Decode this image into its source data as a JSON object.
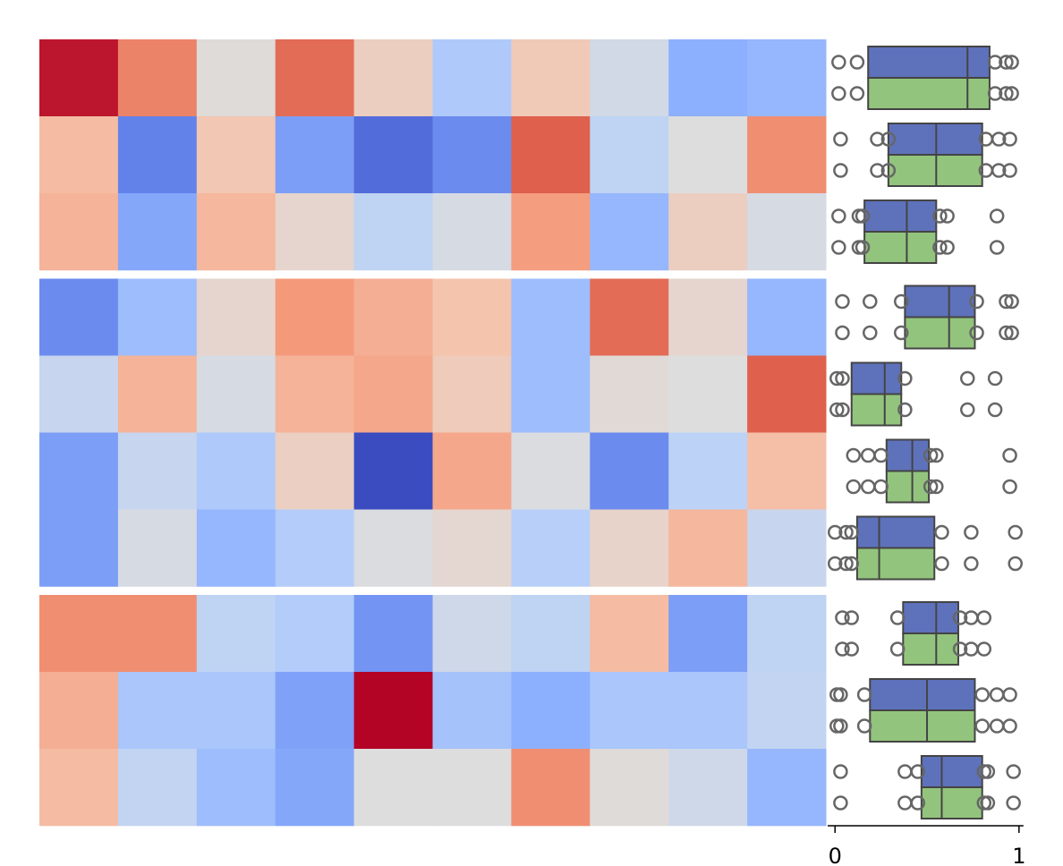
{
  "chart_data": {
    "type": "heatmap",
    "colormap": "coolwarm",
    "vlim": [
      -1,
      1
    ],
    "row_groups": [
      3,
      4,
      3
    ],
    "values": [
      [
        0.95,
        0.6,
        0.02,
        0.7,
        0.15,
        -0.3,
        0.2,
        -0.08,
        -0.5,
        -0.45
      ],
      [
        0.3,
        -0.75,
        0.22,
        -0.6,
        -0.85,
        -0.7,
        0.75,
        -0.2,
        0.0,
        0.55
      ],
      [
        0.35,
        -0.55,
        0.33,
        0.08,
        -0.2,
        -0.05,
        0.48,
        -0.45,
        0.15,
        -0.05
      ],
      [
        -0.7,
        -0.4,
        0.08,
        0.5,
        0.38,
        0.25,
        -0.4,
        0.7,
        0.08,
        -0.45
      ],
      [
        -0.15,
        0.35,
        -0.05,
        0.35,
        0.42,
        0.18,
        -0.4,
        0.04,
        0.0,
        0.75
      ],
      [
        -0.6,
        -0.15,
        -0.3,
        0.14,
        -1.0,
        0.42,
        -0.02,
        -0.7,
        -0.22,
        0.28
      ],
      [
        -0.6,
        -0.05,
        -0.45,
        -0.28,
        -0.02,
        0.07,
        -0.25,
        0.1,
        0.33,
        -0.15
      ],
      [
        0.55,
        0.55,
        -0.2,
        -0.28,
        -0.65,
        -0.1,
        -0.2,
        0.3,
        -0.6,
        -0.2
      ],
      [
        0.38,
        -0.33,
        -0.33,
        -0.58,
        1.0,
        -0.36,
        -0.5,
        -0.33,
        -0.33,
        -0.18
      ],
      [
        0.3,
        -0.18,
        -0.4,
        -0.55,
        0.0,
        0.0,
        0.55,
        0.02,
        -0.1,
        -0.45
      ]
    ],
    "box_annotation": {
      "xlim": [
        -0.04,
        1.03
      ],
      "xticks": [
        0,
        1
      ],
      "series": [
        {
          "color": "#5e72bb",
          "q1": [
            0.18,
            0.29,
            0.16,
            0.38,
            0.09,
            0.28,
            0.12,
            0.37,
            0.19,
            0.47
          ],
          "median": [
            0.72,
            0.55,
            0.39,
            0.62,
            0.27,
            0.42,
            0.24,
            0.55,
            0.5,
            0.58
          ],
          "q3": [
            0.84,
            0.8,
            0.55,
            0.76,
            0.36,
            0.51,
            0.54,
            0.67,
            0.76,
            0.8
          ],
          "points": [
            [
              0.02,
              0.12,
              0.87,
              0.93,
              0.96
            ],
            [
              0.03,
              0.23,
              0.29,
              0.82,
              0.89,
              0.95
            ],
            [
              0.02,
              0.13,
              0.15,
              0.57,
              0.61,
              0.88
            ],
            [
              0.04,
              0.19,
              0.36,
              0.77,
              0.93,
              0.96
            ],
            [
              0.01,
              0.04,
              0.38,
              0.72,
              0.87
            ],
            [
              0.1,
              0.18,
              0.25,
              0.52,
              0.55,
              0.95
            ],
            [
              0.0,
              0.06,
              0.09,
              0.58,
              0.74,
              0.98
            ],
            [
              0.04,
              0.09,
              0.34,
              0.68,
              0.74,
              0.81
            ],
            [
              0.01,
              0.03,
              0.16,
              0.8,
              0.88,
              0.95
            ],
            [
              0.03,
              0.38,
              0.45,
              0.81,
              0.83,
              0.97
            ]
          ]
        },
        {
          "color": "#93c47d",
          "q1": [
            0.18,
            0.29,
            0.16,
            0.38,
            0.09,
            0.28,
            0.12,
            0.37,
            0.19,
            0.47
          ],
          "median": [
            0.72,
            0.55,
            0.39,
            0.62,
            0.27,
            0.42,
            0.24,
            0.55,
            0.5,
            0.58
          ],
          "q3": [
            0.84,
            0.8,
            0.55,
            0.76,
            0.36,
            0.51,
            0.54,
            0.67,
            0.76,
            0.8
          ],
          "points": [
            [
              0.02,
              0.12,
              0.87,
              0.93,
              0.96
            ],
            [
              0.03,
              0.23,
              0.29,
              0.82,
              0.89,
              0.95
            ],
            [
              0.02,
              0.13,
              0.15,
              0.57,
              0.61,
              0.88
            ],
            [
              0.04,
              0.19,
              0.36,
              0.77,
              0.93,
              0.96
            ],
            [
              0.01,
              0.04,
              0.38,
              0.72,
              0.87
            ],
            [
              0.1,
              0.18,
              0.25,
              0.52,
              0.55,
              0.95
            ],
            [
              0.0,
              0.06,
              0.09,
              0.58,
              0.74,
              0.98
            ],
            [
              0.04,
              0.09,
              0.34,
              0.68,
              0.74,
              0.81
            ],
            [
              0.01,
              0.03,
              0.16,
              0.8,
              0.88,
              0.95
            ],
            [
              0.03,
              0.38,
              0.45,
              0.81,
              0.83,
              0.97
            ]
          ]
        }
      ]
    }
  }
}
